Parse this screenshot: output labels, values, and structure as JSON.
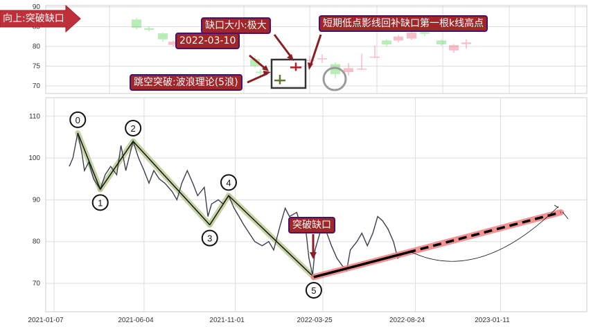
{
  "chart_data": [
    {
      "type": "candlestick",
      "panel": "top",
      "y_ticks": [
        "90",
        "85",
        "80",
        "75",
        "70"
      ],
      "ylim": [
        68,
        90
      ],
      "grid": true,
      "candles": [
        {
          "open": 84.7,
          "close": 86.8,
          "high": 87.2,
          "low": 84.3,
          "dir": "up"
        },
        {
          "open": 84.2,
          "close": 84.6,
          "high": 85.0,
          "low": 83.8,
          "dir": "up"
        },
        {
          "open": 81.8,
          "close": 83.3,
          "high": 83.5,
          "low": 81.2,
          "dir": "up"
        },
        {
          "open": 81.2,
          "close": 80.4,
          "high": 81.5,
          "low": 80.0,
          "dir": "down"
        },
        {
          "open": 75.0,
          "close": 76.8,
          "high": 77.5,
          "low": 74.6,
          "dir": "up"
        },
        {
          "open": 73.3,
          "close": 73.6,
          "high": 74.2,
          "low": 72.8,
          "dir": "up"
        },
        {
          "open": 71.4,
          "close": 71.6,
          "high": 72.8,
          "low": 70.4,
          "dir": "up",
          "highlight": true
        },
        {
          "open": 74.7,
          "close": 74.9,
          "high": 75.9,
          "low": 73.8,
          "dir": "down",
          "highlight": true
        },
        {
          "open": 76.4,
          "close": 76.6,
          "high": 77.6,
          "low": 75.4,
          "dir": "down"
        },
        {
          "open": 76.8,
          "close": 77.0,
          "high": 78.0,
          "low": 75.8,
          "dir": "down"
        },
        {
          "open": 73.0,
          "close": 75.5,
          "high": 76.0,
          "low": 72.0,
          "dir": "up"
        },
        {
          "open": 74.5,
          "close": 73.5,
          "high": 75.8,
          "low": 72.6,
          "dir": "down"
        },
        {
          "open": 74.2,
          "close": 74.4,
          "high": 78.2,
          "low": 74.0,
          "dir": "down"
        },
        {
          "open": 77.2,
          "close": 77.4,
          "high": 80.2,
          "low": 77.0,
          "dir": "down"
        },
        {
          "open": 80.5,
          "close": 81.5,
          "high": 81.8,
          "low": 80.0,
          "dir": "up"
        },
        {
          "open": 82.5,
          "close": 81.5,
          "high": 82.9,
          "low": 81.0,
          "dir": "down"
        },
        {
          "open": 83.5,
          "close": 82.0,
          "high": 84.0,
          "low": 81.6,
          "dir": "down"
        },
        {
          "open": 83.2,
          "close": 83.6,
          "high": 84.2,
          "low": 82.6,
          "dir": "up"
        },
        {
          "open": 80.5,
          "close": 81.5,
          "high": 81.8,
          "low": 80.2,
          "dir": "up"
        },
        {
          "open": 80.3,
          "close": 79.0,
          "high": 80.6,
          "low": 78.4,
          "dir": "down"
        },
        {
          "open": 81.0,
          "close": 80.6,
          "high": 81.8,
          "low": 79.4,
          "dir": "down"
        }
      ]
    },
    {
      "type": "line",
      "panel": "bottom",
      "y_ticks": [
        "110",
        "100",
        "90",
        "80",
        "70"
      ],
      "x_ticks": [
        "2021-01-07",
        "2021-06-04",
        "2021-11-01",
        "2022-03-25",
        "2022-08-24",
        "2023-01-11"
      ],
      "ylim": [
        64,
        114
      ],
      "grid": true,
      "price": [
        [
          "2021-02-01",
          98
        ],
        [
          "2021-02-07",
          100
        ],
        [
          "2021-02-15",
          106
        ],
        [
          "2021-02-22",
          101
        ],
        [
          "2021-02-26",
          97
        ],
        [
          "2021-03-05",
          99
        ],
        [
          "2021-03-13",
          95
        ],
        [
          "2021-03-24",
          92.5
        ],
        [
          "2021-04-01",
          96
        ],
        [
          "2021-04-10",
          98
        ],
        [
          "2021-04-20",
          96
        ],
        [
          "2021-04-27",
          103
        ],
        [
          "2021-05-05",
          97
        ],
        [
          "2021-05-17",
          104
        ],
        [
          "2021-05-26",
          100
        ],
        [
          "2021-06-04",
          97
        ],
        [
          "2021-06-12",
          94
        ],
        [
          "2021-06-20",
          97
        ],
        [
          "2021-06-29",
          95
        ],
        [
          "2021-07-08",
          94
        ],
        [
          "2021-07-20",
          92
        ],
        [
          "2021-07-28",
          90
        ],
        [
          "2021-08-05",
          94
        ],
        [
          "2021-08-14",
          97
        ],
        [
          "2021-08-23",
          94
        ],
        [
          "2021-08-31",
          91
        ],
        [
          "2021-09-11",
          93
        ],
        [
          "2021-09-17",
          86
        ],
        [
          "2021-09-23",
          89
        ],
        [
          "2021-10-04",
          90
        ],
        [
          "2021-10-12",
          89
        ],
        [
          "2021-10-21",
          91
        ],
        [
          "2021-10-30",
          88
        ],
        [
          "2021-11-07",
          86
        ],
        [
          "2021-11-15",
          84
        ],
        [
          "2021-11-24",
          82
        ],
        [
          "2021-12-03",
          80
        ],
        [
          "2021-12-15",
          79
        ],
        [
          "2021-12-26",
          80
        ],
        [
          "2022-01-03",
          78
        ],
        [
          "2022-01-14",
          84
        ],
        [
          "2022-01-22",
          88
        ],
        [
          "2022-01-29",
          86
        ],
        [
          "2022-02-10",
          87
        ],
        [
          "2022-02-18",
          83
        ],
        [
          "2022-02-24",
          84
        ],
        [
          "2022-03-02",
          76
        ],
        [
          "2022-03-08",
          72
        ],
        [
          "2022-03-12",
          78
        ],
        [
          "2022-03-20",
          82
        ],
        [
          "2022-03-29",
          83
        ],
        [
          "2022-04-08",
          79
        ],
        [
          "2022-04-17",
          76
        ],
        [
          "2022-04-27",
          74
        ],
        [
          "2022-05-03",
          73
        ],
        [
          "2022-05-09",
          78
        ],
        [
          "2022-05-20",
          80
        ],
        [
          "2022-05-28",
          82
        ],
        [
          "2022-06-06",
          79
        ],
        [
          "2022-06-15",
          82
        ],
        [
          "2022-06-23",
          86
        ],
        [
          "2022-07-01",
          85
        ],
        [
          "2022-07-10",
          83
        ],
        [
          "2022-07-19",
          80
        ],
        [
          "2022-07-26",
          76
        ],
        [
          "2022-08-04",
          77
        ]
      ],
      "waves": [
        {
          "label": "0",
          "date": "2021-02-15",
          "value": 106,
          "pos": "above"
        },
        {
          "label": "1",
          "date": "2021-03-24",
          "value": 92.5,
          "pos": "below"
        },
        {
          "label": "2",
          "date": "2021-05-17",
          "value": 104,
          "pos": "above"
        },
        {
          "label": "3",
          "date": "2021-09-20",
          "value": 84,
          "pos": "below"
        },
        {
          "label": "4",
          "date": "2021-10-21",
          "value": 91,
          "pos": "above"
        },
        {
          "label": "5",
          "date": "2022-03-10",
          "value": 71.5,
          "pos": "below"
        }
      ],
      "projection": {
        "start": [
          "2022-03-10",
          71.5
        ],
        "end": [
          "2023-04-20",
          87
        ]
      }
    }
  ],
  "annotations": {
    "direction": "向上:突破缺口",
    "gap_size": "缺口大小:极大",
    "gap_date": "2022-03-10",
    "fill_note": "短期低点影线回补缺口第一根k线高点",
    "breakout": "跳空突破:波浪理论(5浪)",
    "gap_label": "突破缺口"
  },
  "colors": {
    "up": "#3c8a2e",
    "down": "#c0262d",
    "price_line": "#3a3f4f",
    "wave_highlight": "#b8c98e",
    "projection": "#f08080",
    "annotation_bg": "#a0262a",
    "annotation_border": "#4a1070"
  }
}
